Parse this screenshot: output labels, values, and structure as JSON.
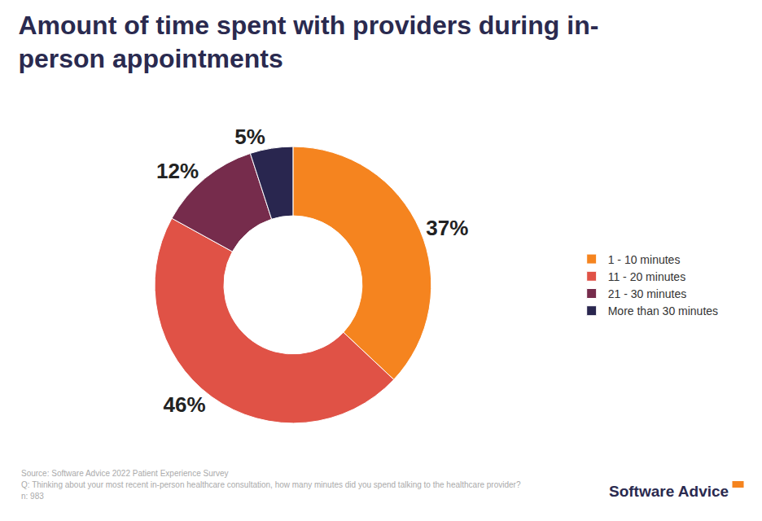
{
  "chart_data": {
    "type": "pie",
    "title": "Amount of time spent with providers during in-person appointments",
    "categories": [
      "1 - 10 minutes",
      "11 - 20 minutes",
      "21 - 30 minutes",
      "More than 30 minutes"
    ],
    "values": [
      37,
      46,
      12,
      5
    ],
    "value_labels": [
      "37%",
      "46%",
      "12%",
      "5%"
    ],
    "colors": [
      "#f5841f",
      "#e05246",
      "#762c4c",
      "#29264f"
    ],
    "data_labels": true,
    "legend": "right",
    "annotations": [
      "Source: Software Advice 2022 Patient Experience Survey",
      "Q: Thinking about your most recent in-person healthcare consultation, how many minutes did you spend talking to the healthcare provider?",
      "n: 983"
    ],
    "brand": "Software Advice"
  }
}
